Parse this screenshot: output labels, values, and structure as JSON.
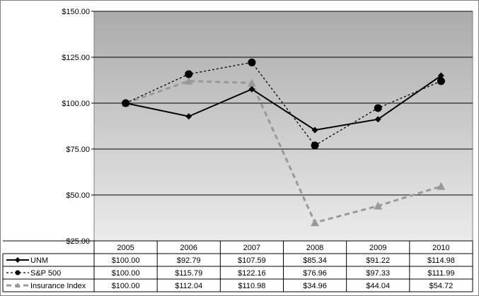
{
  "chart_data": {
    "type": "line",
    "categories": [
      "2005",
      "2006",
      "2007",
      "2008",
      "2009",
      "2010"
    ],
    "ylim": [
      25,
      150
    ],
    "y_ticks": [
      "$25.00",
      "$50.00",
      "$75.00",
      "$100.00",
      "$125.00",
      "$150.00"
    ],
    "grid": true,
    "legend_placement": "table-bottom",
    "series": [
      {
        "name": "UNM",
        "values": [
          100.0,
          92.79,
          107.59,
          85.34,
          91.22,
          114.98
        ],
        "labels": [
          "$100.00",
          "$92.79",
          "$107.59",
          "$85.34",
          "$91.22",
          "$114.98"
        ],
        "color": "#000000",
        "line": "solid",
        "marker": "diamond"
      },
      {
        "name": "S&P 500",
        "values": [
          100.0,
          115.79,
          122.16,
          76.96,
          97.33,
          111.99
        ],
        "labels": [
          "$100.00",
          "$115.79",
          "$122.16",
          "$76.96",
          "$97.33",
          "$111.99"
        ],
        "color": "#000000",
        "line": "dotted",
        "marker": "circle"
      },
      {
        "name": "Insurance Index",
        "values": [
          100.0,
          112.04,
          110.98,
          34.96,
          44.04,
          54.72
        ],
        "labels": [
          "$100.00",
          "$112.04",
          "$110.98",
          "$34.96",
          "$44.04",
          "$54.72"
        ],
        "color": "#999999",
        "line": "dashed",
        "marker": "triangle"
      }
    ]
  }
}
